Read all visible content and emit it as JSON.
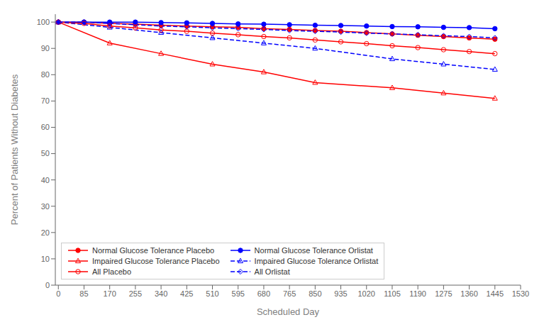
{
  "chart_data": {
    "type": "line",
    "xlabel": "Scheduled Day",
    "ylabel": "Percent of Patients Without Diabetes",
    "xlim": [
      -10,
      1530
    ],
    "ylim": [
      0,
      103
    ],
    "xticks": [
      0,
      85,
      170,
      255,
      340,
      425,
      510,
      595,
      680,
      765,
      850,
      935,
      1020,
      1105,
      1190,
      1275,
      1360,
      1445,
      1530
    ],
    "yticks": [
      0,
      10,
      20,
      30,
      40,
      50,
      60,
      70,
      80,
      90,
      100
    ],
    "grid": false,
    "legend": "lower left",
    "series": [
      {
        "name": "Normal Glucose Tolerance Placebo",
        "color": "red",
        "marker": "circle",
        "line_style": "solid",
        "x": [
          0,
          85,
          170,
          255,
          340,
          425,
          510,
          595,
          680,
          765,
          850,
          935,
          1020,
          1105,
          1190,
          1275,
          1360,
          1445
        ],
        "values": [
          100,
          100,
          99.5,
          99.2,
          98.8,
          98.5,
          98.2,
          98.0,
          97.5,
          97.2,
          96.8,
          96.5,
          96.0,
          95.5,
          95.0,
          94.5,
          94.0,
          93.5
        ]
      },
      {
        "name": "Normal Glucose Tolerance Orlistat",
        "color": "blue",
        "marker": "circle",
        "line_style": "solid",
        "x": [
          0,
          85,
          170,
          255,
          340,
          425,
          510,
          595,
          680,
          765,
          850,
          935,
          1020,
          1105,
          1190,
          1275,
          1360,
          1445
        ],
        "values": [
          100,
          100,
          100,
          100,
          99.8,
          99.7,
          99.5,
          99.3,
          99.2,
          99.0,
          98.8,
          98.7,
          98.5,
          98.3,
          98.2,
          98.0,
          97.9,
          97.5
        ]
      },
      {
        "name": "Impaired Glucose Tolerance Placebo",
        "color": "red",
        "marker": "triangle-open",
        "line_style": "solid",
        "x": [
          0,
          170,
          340,
          510,
          680,
          850,
          1105,
          1275,
          1445
        ],
        "values": [
          100,
          92,
          88,
          84,
          81,
          77,
          75,
          73,
          71
        ]
      },
      {
        "name": "Impaired Glucose Tolerance Orlistat",
        "color": "blue",
        "marker": "triangle-open",
        "line_style": "dashed",
        "x": [
          0,
          170,
          340,
          510,
          680,
          850,
          1105,
          1275,
          1445
        ],
        "values": [
          100,
          98,
          96,
          94,
          92,
          90,
          86,
          84,
          82
        ]
      },
      {
        "name": "All Placebo",
        "color": "red",
        "marker": "circle-open",
        "line_style": "solid",
        "x": [
          0,
          85,
          170,
          255,
          340,
          425,
          510,
          595,
          680,
          765,
          850,
          935,
          1020,
          1105,
          1190,
          1275,
          1360,
          1445
        ],
        "values": [
          100,
          99.5,
          98.5,
          97.8,
          97.0,
          96.5,
          95.8,
          95.2,
          94.5,
          94.0,
          93.2,
          92.5,
          91.8,
          91.0,
          90.3,
          89.5,
          88.8,
          88.0
        ]
      },
      {
        "name": "All Orlistat",
        "color": "blue",
        "marker": "diamond-open",
        "line_style": "dashed",
        "x": [
          0,
          85,
          170,
          255,
          340,
          425,
          510,
          595,
          680,
          765,
          850,
          935,
          1020,
          1105,
          1190,
          1275,
          1360,
          1445
        ],
        "values": [
          100,
          100,
          99.5,
          99.0,
          98.5,
          98.2,
          97.8,
          97.5,
          97.2,
          96.8,
          96.5,
          96.2,
          95.8,
          95.5,
          95.2,
          94.8,
          94.5,
          94.0
        ]
      }
    ]
  }
}
